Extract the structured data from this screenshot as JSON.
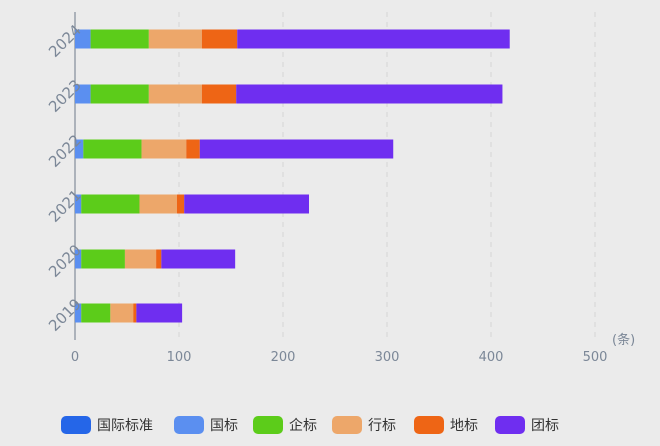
{
  "chart_data": {
    "type": "bar",
    "orientation": "horizontal",
    "stacked": true,
    "categories": [
      "2024",
      "2023",
      "2022",
      "2021",
      "2020",
      "2019"
    ],
    "series": [
      {
        "name": "国际标准",
        "color": "#2566e8",
        "values": [
          0,
          0,
          0,
          0,
          0,
          0
        ]
      },
      {
        "name": "国标",
        "color": "#5b8ff0",
        "values": [
          15,
          15,
          8,
          6,
          6,
          6
        ]
      },
      {
        "name": "企标",
        "color": "#5ccc1a",
        "values": [
          56,
          56,
          56,
          56,
          42,
          28
        ]
      },
      {
        "name": "行标",
        "color": "#eda76a",
        "values": [
          51,
          51,
          43,
          36,
          30,
          22
        ]
      },
      {
        "name": "地标",
        "color": "#ee6515",
        "values": [
          34,
          33,
          13,
          7,
          5,
          3
        ]
      },
      {
        "name": "团标",
        "color": "#6f2ef0",
        "values": [
          262,
          256,
          186,
          120,
          71,
          44
        ]
      }
    ],
    "xlim": [
      0,
      500
    ],
    "xticks": [
      "0",
      "100",
      "200",
      "300",
      "400",
      "500"
    ],
    "xunit": "(条)",
    "grid": true,
    "legend": "bottom"
  }
}
